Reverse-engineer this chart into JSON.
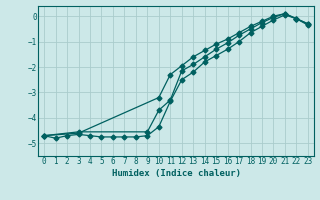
{
  "xlabel": "Humidex (Indice chaleur)",
  "background_color": "#cce8e8",
  "grid_color": "#aacccc",
  "line_color": "#006060",
  "xlim": [
    -0.5,
    23.5
  ],
  "ylim": [
    -5.5,
    0.4
  ],
  "xticks": [
    0,
    1,
    2,
    3,
    4,
    5,
    6,
    7,
    8,
    9,
    10,
    11,
    12,
    13,
    14,
    15,
    16,
    17,
    18,
    19,
    20,
    21,
    22,
    23
  ],
  "yticks": [
    0,
    -1,
    -2,
    -3,
    -4,
    -5
  ],
  "line1_x": [
    0,
    1,
    2,
    3,
    4,
    5,
    6,
    7,
    8,
    9,
    10,
    11,
    12,
    13,
    14,
    15,
    16,
    17,
    18,
    19,
    20,
    21,
    22,
    23
  ],
  "line1_y": [
    -4.7,
    -4.8,
    -4.7,
    -4.65,
    -4.7,
    -4.75,
    -4.75,
    -4.75,
    -4.75,
    -4.7,
    -4.35,
    -3.35,
    -2.5,
    -2.2,
    -1.8,
    -1.55,
    -1.3,
    -1.0,
    -0.65,
    -0.4,
    -0.15,
    0.05,
    -0.1,
    -0.35
  ],
  "line2_x": [
    0,
    3,
    10,
    11,
    12,
    13,
    14,
    15,
    16,
    17,
    18,
    19,
    20,
    21,
    22,
    23
  ],
  "line2_y": [
    -4.7,
    -4.6,
    -3.2,
    -2.3,
    -1.95,
    -1.6,
    -1.35,
    -1.1,
    -0.9,
    -0.65,
    -0.4,
    -0.2,
    0.0,
    0.1,
    -0.1,
    -0.3
  ],
  "line3_x": [
    0,
    3,
    9,
    10,
    11,
    12,
    13,
    14,
    15,
    16,
    17,
    18,
    19,
    20,
    21,
    22,
    23
  ],
  "line3_y": [
    -4.7,
    -4.55,
    -4.55,
    -3.7,
    -3.3,
    -2.15,
    -1.9,
    -1.6,
    -1.3,
    -1.05,
    -0.75,
    -0.5,
    -0.25,
    -0.05,
    0.1,
    -0.1,
    -0.3
  ],
  "tick_fontsize": 5.5,
  "xlabel_fontsize": 6.5
}
